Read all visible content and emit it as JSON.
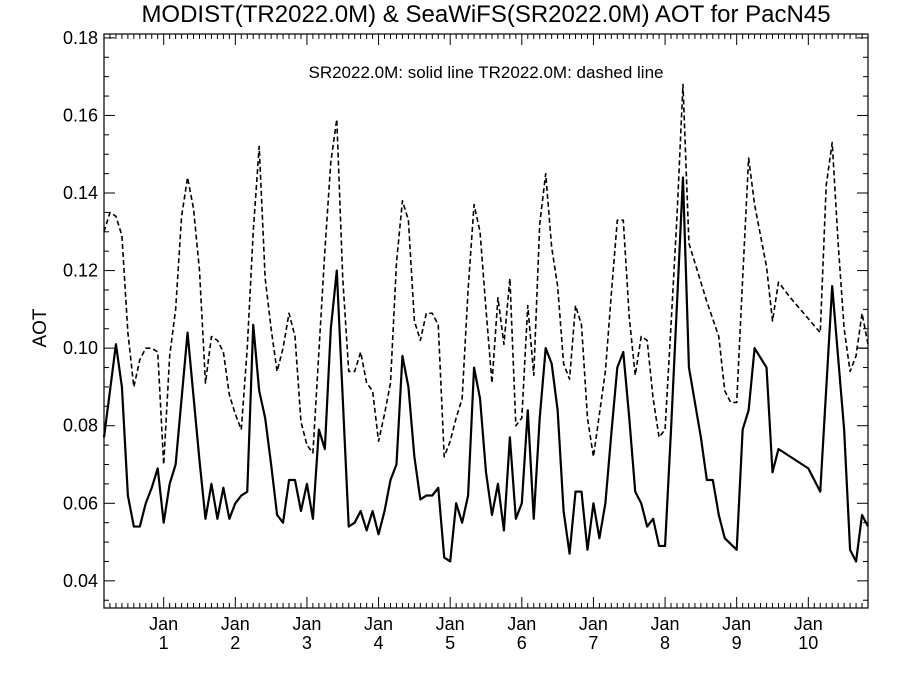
{
  "chart_data": {
    "type": "line",
    "title": "MODIST(TR2022.0M) & SeaWiFS(SR2022.0M)  AOT for PacN45",
    "note": "SR2022.0M: solid line   TR2022.0M: dashed line",
    "ylabel": "AOT",
    "xlabel": "",
    "ylim": [
      0.033,
      0.181
    ],
    "xlim": [
      0,
      128
    ],
    "yticks": [
      0.04,
      0.06,
      0.08,
      0.1,
      0.12,
      0.14,
      0.16,
      0.18
    ],
    "ytick_labels": [
      "0.04",
      "0.06",
      "0.08",
      "0.10",
      "0.12",
      "0.14",
      "0.16",
      "0.18"
    ],
    "xticks": [
      {
        "x": 10,
        "month": "Jan",
        "year": "1"
      },
      {
        "x": 22,
        "month": "Jan",
        "year": "2"
      },
      {
        "x": 34,
        "month": "Jan",
        "year": "3"
      },
      {
        "x": 46,
        "month": "Jan",
        "year": "4"
      },
      {
        "x": 58,
        "month": "Jan",
        "year": "5"
      },
      {
        "x": 70,
        "month": "Jan",
        "year": "6"
      },
      {
        "x": 82,
        "month": "Jan",
        "year": "7"
      },
      {
        "x": 94,
        "month": "Jan",
        "year": "8"
      },
      {
        "x": 106,
        "month": "Jan",
        "year": "9"
      },
      {
        "x": 118,
        "month": "Jan",
        "year": "10"
      }
    ],
    "grid": false,
    "series": [
      {
        "style": "solid",
        "points": [
          [
            0,
            0.077
          ],
          [
            2,
            0.101
          ],
          [
            3,
            0.09
          ],
          [
            4,
            0.062
          ],
          [
            5,
            0.054
          ],
          [
            6,
            0.054
          ],
          [
            7,
            0.06
          ],
          [
            8,
            0.064
          ],
          [
            9,
            0.069
          ],
          [
            10,
            0.055
          ],
          [
            11,
            0.065
          ],
          [
            12,
            0.07
          ],
          [
            14,
            0.104
          ],
          [
            16,
            0.071
          ],
          [
            17,
            0.056
          ],
          [
            18,
            0.065
          ],
          [
            19,
            0.056
          ],
          [
            20,
            0.064
          ],
          [
            21,
            0.056
          ],
          [
            22,
            0.06
          ],
          [
            23,
            0.062
          ],
          [
            24,
            0.063
          ],
          [
            25,
            0.106
          ],
          [
            26,
            0.089
          ],
          [
            27,
            0.082
          ],
          [
            28,
            0.07
          ],
          [
            29,
            0.057
          ],
          [
            30,
            0.055
          ],
          [
            31,
            0.066
          ],
          [
            32,
            0.066
          ],
          [
            33,
            0.058
          ],
          [
            34,
            0.065
          ],
          [
            35,
            0.056
          ],
          [
            36,
            0.079
          ],
          [
            37,
            0.074
          ],
          [
            38,
            0.105
          ],
          [
            39,
            0.12
          ],
          [
            41,
            0.054
          ],
          [
            42,
            0.055
          ],
          [
            43,
            0.058
          ],
          [
            44,
            0.053
          ],
          [
            45,
            0.058
          ],
          [
            46,
            0.052
          ],
          [
            47,
            0.058
          ],
          [
            48,
            0.066
          ],
          [
            49,
            0.07
          ],
          [
            50,
            0.098
          ],
          [
            51,
            0.09
          ],
          [
            52,
            0.072
          ],
          [
            53,
            0.061
          ],
          [
            54,
            0.062
          ],
          [
            55,
            0.062
          ],
          [
            56,
            0.064
          ],
          [
            57,
            0.046
          ],
          [
            58,
            0.045
          ],
          [
            59,
            0.06
          ],
          [
            60,
            0.055
          ],
          [
            61,
            0.062
          ],
          [
            62,
            0.095
          ],
          [
            63,
            0.087
          ],
          [
            64,
            0.068
          ],
          [
            65,
            0.057
          ],
          [
            66,
            0.065
          ],
          [
            67,
            0.053
          ],
          [
            68,
            0.077
          ],
          [
            69,
            0.056
          ],
          [
            70,
            0.06
          ],
          [
            71,
            0.084
          ],
          [
            72,
            0.056
          ],
          [
            73,
            0.082
          ],
          [
            74,
            0.1
          ],
          [
            75,
            0.096
          ],
          [
            76,
            0.084
          ],
          [
            77,
            0.058
          ],
          [
            78,
            0.047
          ],
          [
            79,
            0.063
          ],
          [
            80,
            0.063
          ],
          [
            81,
            0.048
          ],
          [
            82,
            0.06
          ],
          [
            83,
            0.051
          ],
          [
            84,
            0.06
          ],
          [
            85,
            0.078
          ],
          [
            86,
            0.095
          ],
          [
            87,
            0.099
          ],
          [
            88,
            0.082
          ],
          [
            89,
            0.063
          ],
          [
            90,
            0.06
          ],
          [
            91,
            0.054
          ],
          [
            92,
            0.056
          ],
          [
            93,
            0.049
          ],
          [
            94,
            0.049
          ],
          [
            95,
            0.079
          ],
          [
            97,
            0.144
          ],
          [
            98,
            0.095
          ],
          [
            100,
            0.077
          ],
          [
            101,
            0.066
          ],
          [
            102,
            0.066
          ],
          [
            103,
            0.057
          ],
          [
            104,
            0.051
          ],
          [
            106,
            0.048
          ],
          [
            107,
            0.079
          ],
          [
            108,
            0.084
          ],
          [
            109,
            0.1
          ],
          [
            111,
            0.095
          ],
          [
            112,
            0.068
          ],
          [
            113,
            0.074
          ],
          [
            118,
            0.069
          ],
          [
            120,
            0.063
          ],
          [
            122,
            0.116
          ],
          [
            124,
            0.079
          ],
          [
            125,
            0.048
          ],
          [
            126,
            0.045
          ],
          [
            127,
            0.057
          ],
          [
            128,
            0.054
          ]
        ]
      },
      {
        "style": "dashed",
        "points": [
          [
            0,
            0.13
          ],
          [
            1,
            0.135
          ],
          [
            2,
            0.134
          ],
          [
            3,
            0.129
          ],
          [
            4,
            0.104
          ],
          [
            5,
            0.09
          ],
          [
            6,
            0.097
          ],
          [
            7,
            0.1
          ],
          [
            8,
            0.1
          ],
          [
            9,
            0.099
          ],
          [
            10,
            0.07
          ],
          [
            11,
            0.098
          ],
          [
            12,
            0.11
          ],
          [
            13,
            0.134
          ],
          [
            14,
            0.144
          ],
          [
            15,
            0.136
          ],
          [
            16,
            0.12
          ],
          [
            17,
            0.091
          ],
          [
            18,
            0.103
          ],
          [
            19,
            0.102
          ],
          [
            20,
            0.099
          ],
          [
            21,
            0.088
          ],
          [
            22,
            0.083
          ],
          [
            23,
            0.079
          ],
          [
            24,
            0.1
          ],
          [
            25,
            0.13
          ],
          [
            26,
            0.152
          ],
          [
            27,
            0.118
          ],
          [
            28,
            0.105
          ],
          [
            29,
            0.094
          ],
          [
            30,
            0.1
          ],
          [
            31,
            0.109
          ],
          [
            32,
            0.103
          ],
          [
            33,
            0.081
          ],
          [
            34,
            0.075
          ],
          [
            35,
            0.073
          ],
          [
            36,
            0.099
          ],
          [
            37,
            0.125
          ],
          [
            38,
            0.148
          ],
          [
            39,
            0.159
          ],
          [
            40,
            0.118
          ],
          [
            41,
            0.094
          ],
          [
            42,
            0.094
          ],
          [
            43,
            0.099
          ],
          [
            44,
            0.091
          ],
          [
            45,
            0.089
          ],
          [
            46,
            0.076
          ],
          [
            47,
            0.083
          ],
          [
            48,
            0.091
          ],
          [
            49,
            0.122
          ],
          [
            50,
            0.138
          ],
          [
            51,
            0.133
          ],
          [
            52,
            0.107
          ],
          [
            53,
            0.102
          ],
          [
            54,
            0.109
          ],
          [
            55,
            0.109
          ],
          [
            56,
            0.106
          ],
          [
            57,
            0.072
          ],
          [
            58,
            0.076
          ],
          [
            59,
            0.082
          ],
          [
            60,
            0.087
          ],
          [
            61,
            0.115
          ],
          [
            62,
            0.137
          ],
          [
            63,
            0.13
          ],
          [
            64,
            0.11
          ],
          [
            65,
            0.091
          ],
          [
            66,
            0.113
          ],
          [
            67,
            0.101
          ],
          [
            68,
            0.118
          ],
          [
            69,
            0.08
          ],
          [
            70,
            0.082
          ],
          [
            71,
            0.111
          ],
          [
            72,
            0.093
          ],
          [
            73,
            0.132
          ],
          [
            74,
            0.145
          ],
          [
            75,
            0.126
          ],
          [
            76,
            0.116
          ],
          [
            77,
            0.096
          ],
          [
            78,
            0.092
          ],
          [
            79,
            0.111
          ],
          [
            80,
            0.106
          ],
          [
            81,
            0.082
          ],
          [
            82,
            0.072
          ],
          [
            83,
            0.083
          ],
          [
            84,
            0.094
          ],
          [
            85,
            0.114
          ],
          [
            86,
            0.133
          ],
          [
            87,
            0.133
          ],
          [
            88,
            0.108
          ],
          [
            89,
            0.093
          ],
          [
            90,
            0.103
          ],
          [
            91,
            0.102
          ],
          [
            92,
            0.087
          ],
          [
            93,
            0.077
          ],
          [
            94,
            0.079
          ],
          [
            95,
            0.106
          ],
          [
            96,
            0.134
          ],
          [
            97,
            0.168
          ],
          [
            98,
            0.127
          ],
          [
            99,
            0.122
          ],
          [
            101,
            0.112
          ],
          [
            103,
            0.103
          ],
          [
            104,
            0.089
          ],
          [
            105,
            0.086
          ],
          [
            106,
            0.086
          ],
          [
            107,
            0.118
          ],
          [
            108,
            0.149
          ],
          [
            109,
            0.137
          ],
          [
            111,
            0.121
          ],
          [
            112,
            0.107
          ],
          [
            113,
            0.117
          ],
          [
            115,
            0.113
          ],
          [
            120,
            0.104
          ],
          [
            121,
            0.142
          ],
          [
            122,
            0.153
          ],
          [
            123,
            0.127
          ],
          [
            124,
            0.105
          ],
          [
            125,
            0.094
          ],
          [
            126,
            0.098
          ],
          [
            127,
            0.109
          ],
          [
            128,
            0.101
          ]
        ]
      },
      {
        "style": "solid-thin",
        "points": [
          [
            126,
            0.1
          ],
          [
            128,
            0.1
          ]
        ]
      }
    ]
  }
}
